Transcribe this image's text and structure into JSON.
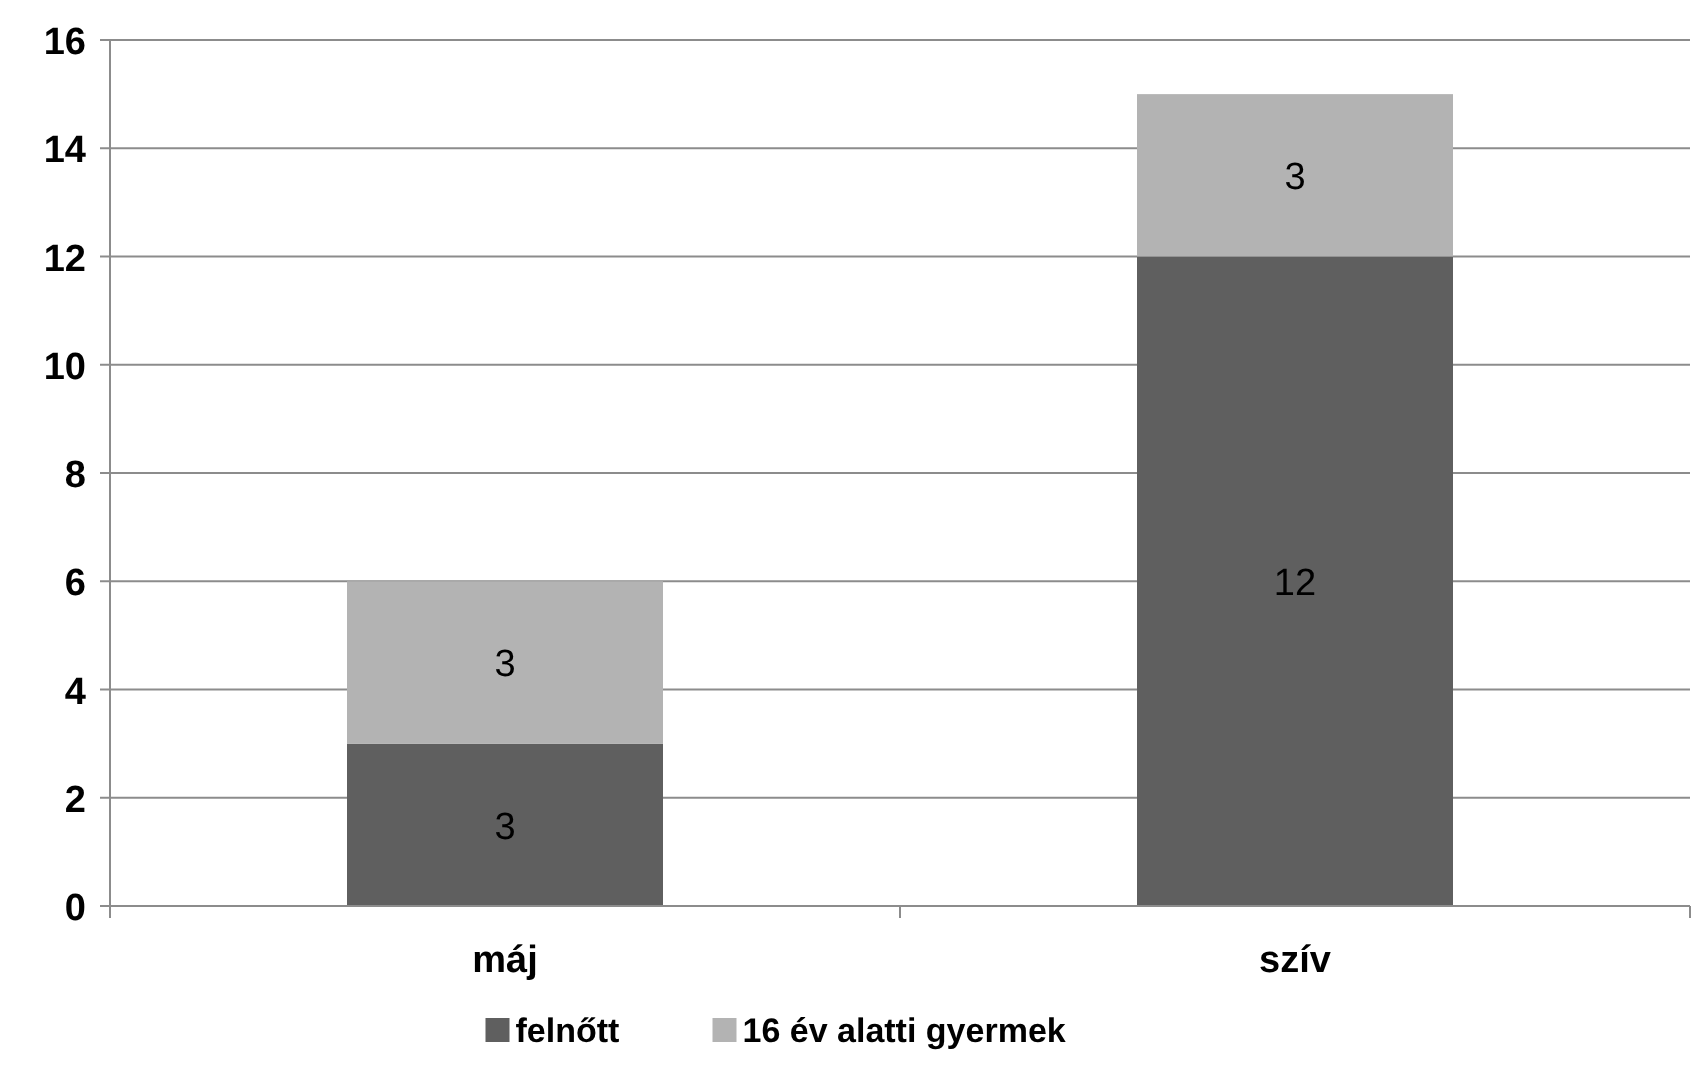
{
  "chart_data": {
    "type": "bar",
    "stacked": true,
    "categories": [
      "máj",
      "szív"
    ],
    "series": [
      {
        "name": "felnőtt",
        "color": "#5f5f5f",
        "values": [
          3,
          12
        ]
      },
      {
        "name": "16 év alatti gyermek",
        "color": "#b3b3b3",
        "values": [
          3,
          3
        ]
      }
    ],
    "ylim": [
      0,
      16
    ],
    "yticks": [
      0,
      2,
      4,
      6,
      8,
      10,
      12,
      14,
      16
    ],
    "grid": "y",
    "legend": "bottom",
    "data_labels": true
  }
}
